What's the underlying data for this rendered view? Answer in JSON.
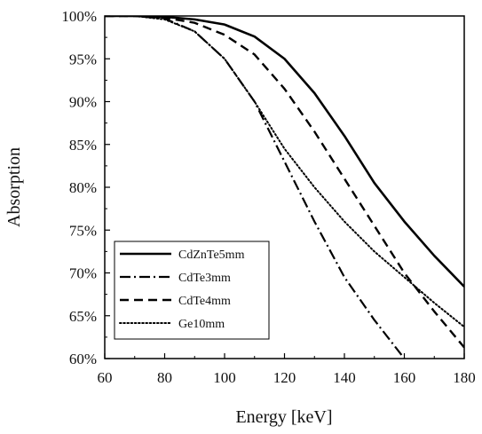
{
  "chart_data": {
    "type": "line",
    "title": "",
    "xlabel": "Energy [keV]",
    "ylabel": "Absorption",
    "xlim": [
      60,
      180
    ],
    "ylim": [
      60,
      100
    ],
    "x_ticks": [
      60,
      80,
      100,
      120,
      140,
      160,
      180
    ],
    "y_ticks": [
      60,
      65,
      70,
      75,
      80,
      85,
      90,
      95,
      100
    ],
    "x_tick_labels": [
      "60",
      "80",
      "100",
      "120",
      "140",
      "160",
      "180"
    ],
    "y_tick_labels": [
      "60%",
      "65%",
      "70%",
      "75%",
      "80%",
      "85%",
      "90%",
      "95%",
      "100%"
    ],
    "y_unit": "%",
    "grid": false,
    "legend_position": "bottom-left",
    "series": [
      {
        "name": "CdZnTe5mm",
        "style": "solid",
        "color": "#000000",
        "points": [
          [
            60,
            100
          ],
          [
            70,
            100
          ],
          [
            80,
            99.9
          ],
          [
            90,
            99.6
          ],
          [
            100,
            99
          ],
          [
            110,
            97.6
          ],
          [
            120,
            95
          ],
          [
            130,
            91
          ],
          [
            140,
            86
          ],
          [
            150,
            80.5
          ],
          [
            160,
            76
          ],
          [
            170,
            72
          ],
          [
            180,
            68.4
          ]
        ]
      },
      {
        "name": "CdTe3mm",
        "style": "dashdot",
        "color": "#000000",
        "points": [
          [
            60,
            100
          ],
          [
            70,
            100
          ],
          [
            80,
            99.7
          ],
          [
            90,
            98.2
          ],
          [
            100,
            95
          ],
          [
            110,
            90
          ],
          [
            120,
            83
          ],
          [
            130,
            76
          ],
          [
            140,
            69.5
          ],
          [
            150,
            64.5
          ],
          [
            160,
            60
          ]
        ]
      },
      {
        "name": "CdTe4mm",
        "style": "dashed",
        "color": "#000000",
        "points": [
          [
            60,
            100
          ],
          [
            70,
            100
          ],
          [
            80,
            99.8
          ],
          [
            90,
            99.2
          ],
          [
            100,
            97.8
          ],
          [
            110,
            95.5
          ],
          [
            120,
            91.5
          ],
          [
            130,
            86.5
          ],
          [
            140,
            81
          ],
          [
            150,
            75.5
          ],
          [
            160,
            70
          ],
          [
            170,
            65.5
          ],
          [
            180,
            61.3
          ]
        ]
      },
      {
        "name": "Ge10mm",
        "style": "dotted",
        "color": "#000000",
        "points": [
          [
            60,
            100
          ],
          [
            70,
            100
          ],
          [
            80,
            99.6
          ],
          [
            90,
            98.2
          ],
          [
            100,
            95
          ],
          [
            110,
            90
          ],
          [
            120,
            84.5
          ],
          [
            130,
            80
          ],
          [
            140,
            76
          ],
          [
            150,
            72.5
          ],
          [
            160,
            69.5
          ],
          [
            170,
            66.5
          ],
          [
            180,
            63.7
          ]
        ]
      }
    ]
  }
}
